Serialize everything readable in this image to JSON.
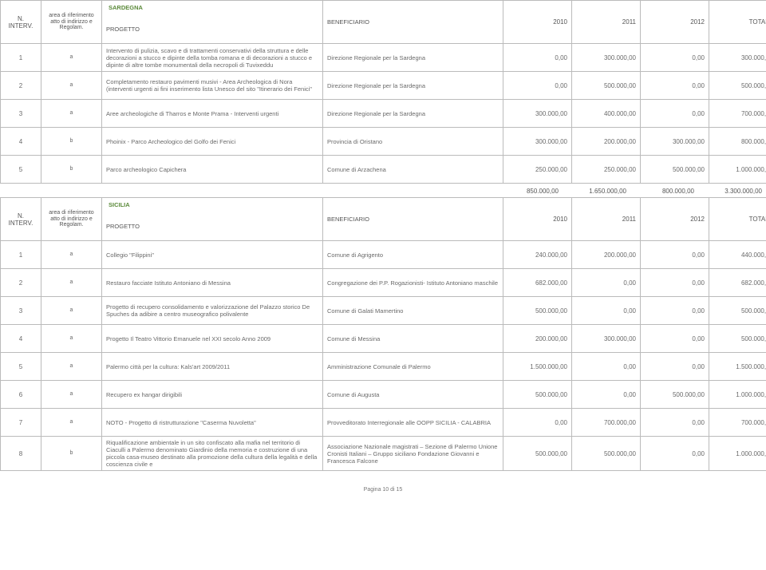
{
  "header_labels": {
    "n_interv": "N. INTERV.",
    "area": "area di riferimento atto di indirizzo e Regolam.",
    "progetto": "PROGETTO",
    "beneficiario": "BENEFICIARIO",
    "y2010": "2010",
    "y2011": "2011",
    "y2012": "2012",
    "totale": "TOTALE"
  },
  "sardegna": {
    "title": "SARDEGNA",
    "rows": [
      {
        "n": "1",
        "area": "a",
        "progetto": "Intervento di pulizia, scavo e di trattamenti conservativi della struttura e delle decorazioni a stucco e dipinte della tomba romana e di decorazioni a stucco e dipinte di altre tombe monumentali della necropoli di Tuvixeddu",
        "benef": "Direzione Regionale per la Sardegna",
        "v2010": "0,00",
        "v2011": "300.000,00",
        "v2012": "0,00",
        "totale": "300.000,00"
      },
      {
        "n": "2",
        "area": "a",
        "progetto": "Completamento restauro pavimenti musivi - Area Archeologica di Nora (interventi urgenti ai fini inserimento lista Unesco del sito \"Itinerario dei Fenici\"",
        "benef": "Direzione Regionale per la Sardegna",
        "v2010": "0,00",
        "v2011": "500.000,00",
        "v2012": "0,00",
        "totale": "500.000,00"
      },
      {
        "n": "3",
        "area": "a",
        "progetto": "Aree archeologiche di Tharros e Monte Prama - Interventi urgenti",
        "benef": "Direzione Regionale per la Sardegna",
        "v2010": "300.000,00",
        "v2011": "400.000,00",
        "v2012": "0,00",
        "totale": "700.000,00"
      },
      {
        "n": "4",
        "area": "b",
        "progetto": "Phoinix - Parco Archeologico del Golfo dei Fenici",
        "benef": "Provincia di Oristano",
        "v2010": "300.000,00",
        "v2011": "200.000,00",
        "v2012": "300.000,00",
        "totale": "800.000,00"
      },
      {
        "n": "5",
        "area": "b",
        "progetto": "Parco archeologico Capichera",
        "benef": "Comune di Arzachena",
        "v2010": "250.000,00",
        "v2011": "250.000,00",
        "v2012": "500.000,00",
        "totale": "1.000.000,00"
      }
    ],
    "subtotal": {
      "v2010": "850.000,00",
      "v2011": "1.650.000,00",
      "v2012": "800.000,00",
      "totale": "3.300.000,00"
    }
  },
  "sicilia": {
    "title": "SICILIA",
    "rows": [
      {
        "n": "1",
        "area": "a",
        "progetto": "Collegio \"Filippini\"",
        "benef": "Comune di Agrigento",
        "v2010": "240.000,00",
        "v2011": "200.000,00",
        "v2012": "0,00",
        "totale": "440.000,00"
      },
      {
        "n": "2",
        "area": "a",
        "progetto": "Restauro facciate Istituto Antoniano di Messina",
        "benef": "Congregazione dei P.P. Rogazionisti- Istituto Antoniano maschile",
        "v2010": "682.000,00",
        "v2011": "0,00",
        "v2012": "0,00",
        "totale": "682.000,00"
      },
      {
        "n": "3",
        "area": "a",
        "progetto": "Progetto di recupero consolidamento e valorizzazione del Palazzo storico De Spuches da adibire a centro museografico polivalente",
        "benef": "Comune di Galati Mamertino",
        "v2010": "500.000,00",
        "v2011": "0,00",
        "v2012": "0,00",
        "totale": "500.000,00"
      },
      {
        "n": "4",
        "area": "a",
        "progetto": "Progetto Il Teatro Vittorio Emanuele nel XXI secolo Anno 2009",
        "benef": "Comune di Messina",
        "v2010": "200.000,00",
        "v2011": "300.000,00",
        "v2012": "0,00",
        "totale": "500.000,00"
      },
      {
        "n": "5",
        "area": "a",
        "progetto": "Palermo città per la cultura: Kals'art 2009/2011",
        "benef": "Amministrazione Comunale di Palermo",
        "v2010": "1.500.000,00",
        "v2011": "0,00",
        "v2012": "0,00",
        "totale": "1.500.000,00"
      },
      {
        "n": "6",
        "area": "a",
        "progetto": "Recupero ex hangar dirigibili",
        "benef": "Comune di Augusta",
        "v2010": "500.000,00",
        "v2011": "0,00",
        "v2012": "500.000,00",
        "totale": "1.000.000,00"
      },
      {
        "n": "7",
        "area": "a",
        "progetto": "NOTO -  Progetto di ristrutturazione \"Caserma Nuvoletta\"",
        "benef": "Provveditorato Interregionale alle OOPP SICILIA - CALABRIA",
        "v2010": "0,00",
        "v2011": "700.000,00",
        "v2012": "0,00",
        "totale": "700.000,00"
      },
      {
        "n": "8",
        "area": "b",
        "progetto": "Riqualificazione ambientale in un sito confiscato alla mafia nel territorio di Ciaculli a Palermo denominato Giardinio della memoria e costruzione di una piccola casa-museo destinato alla promozione della cultura della legalità e della coscienza civile e",
        "benef": "Associazione Nazionale magistrati – Sezione di Palermo Unione Cronisti Italiani – Gruppo siciliano Fondazione  Giovanni e Francesca Falcone",
        "v2010": "500.000,00",
        "v2011": "500.000,00",
        "v2012": "0,00",
        "totale": "1.000.000,00"
      }
    ]
  },
  "footer": "Pagina 10 di 15",
  "colors": {
    "region_title": "#5b8a3a",
    "border": "#bbbbbb",
    "text": "#6a6a6a"
  }
}
